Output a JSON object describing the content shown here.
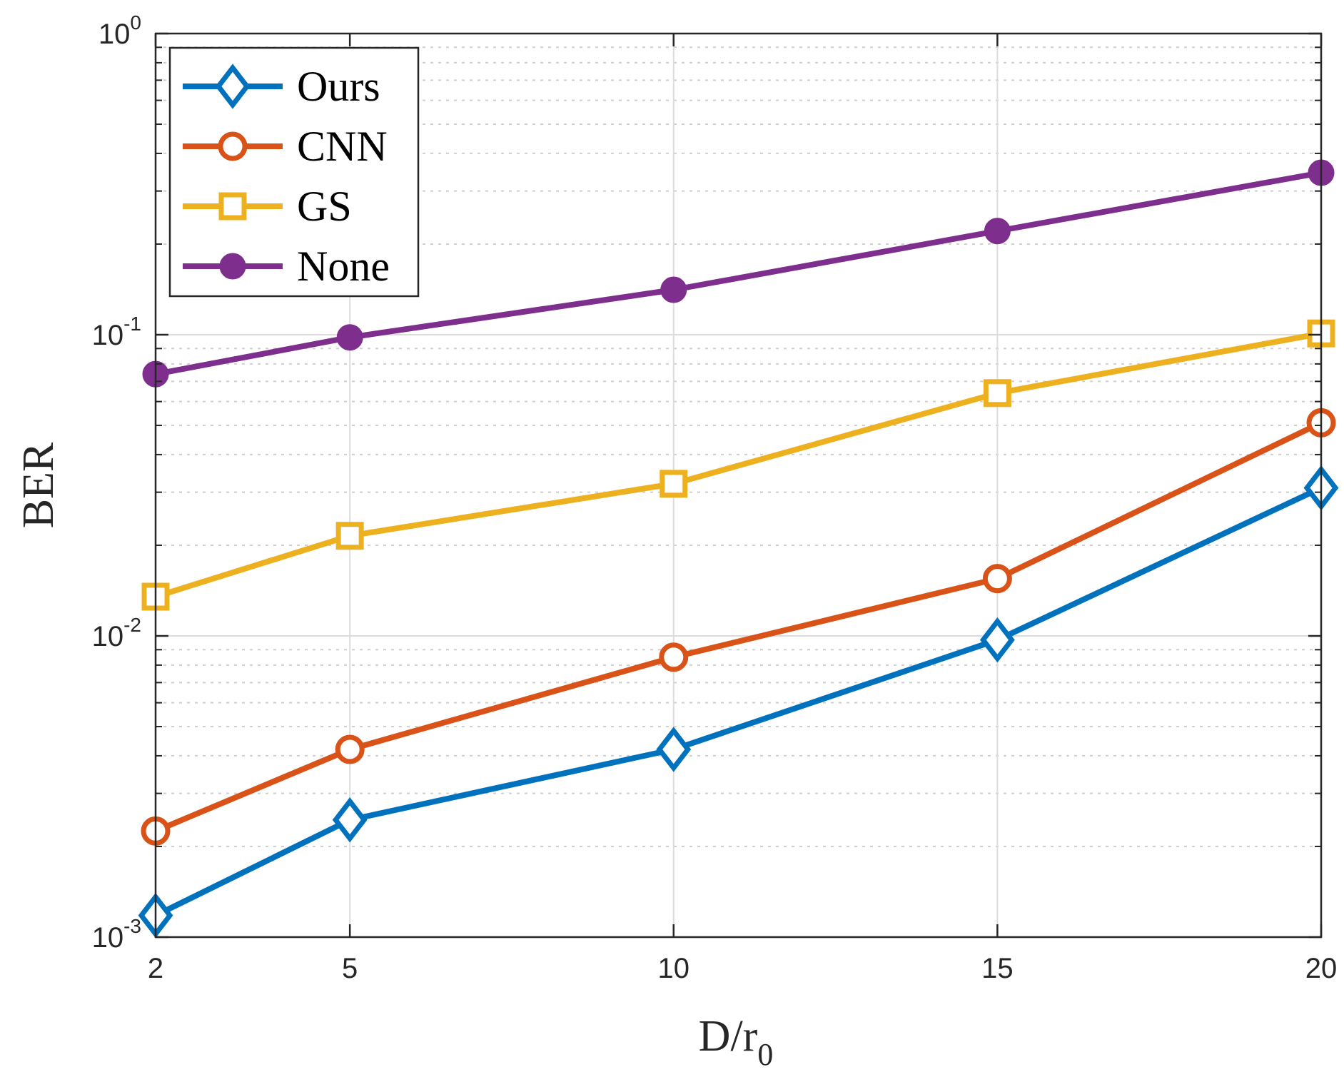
{
  "chart_data": {
    "type": "line",
    "title": "",
    "xlabel": "D/r",
    "xlabel_sub": "0",
    "ylabel": "BER",
    "yscale": "log",
    "ylim": [
      0.001,
      1
    ],
    "x": [
      2,
      5,
      10,
      15,
      20
    ],
    "x_tick_labels": [
      "2",
      "5",
      "10",
      "15",
      "20"
    ],
    "y_tick_labels": [
      {
        "base": "10",
        "exp": "-3"
      },
      {
        "base": "10",
        "exp": "-2"
      },
      {
        "base": "10",
        "exp": "-1"
      },
      {
        "base": "10",
        "exp": "0"
      }
    ],
    "grid": true,
    "legend_position": "top-left",
    "series": [
      {
        "name": "Ours",
        "color": "#0072BD",
        "marker": "diamond",
        "values": [
          0.00118,
          0.00245,
          0.0042,
          0.0097,
          0.031
        ]
      },
      {
        "name": "CNN",
        "color": "#D95319",
        "marker": "circle",
        "values": [
          0.00225,
          0.0042,
          0.0085,
          0.0155,
          0.051
        ]
      },
      {
        "name": "GS",
        "color": "#EDB120",
        "marker": "square",
        "values": [
          0.0135,
          0.0215,
          0.032,
          0.064,
          0.101
        ]
      },
      {
        "name": "None",
        "color": "#7E2F8E",
        "marker": "filled-circle",
        "values": [
          0.074,
          0.098,
          0.141,
          0.221,
          0.345
        ]
      }
    ]
  }
}
